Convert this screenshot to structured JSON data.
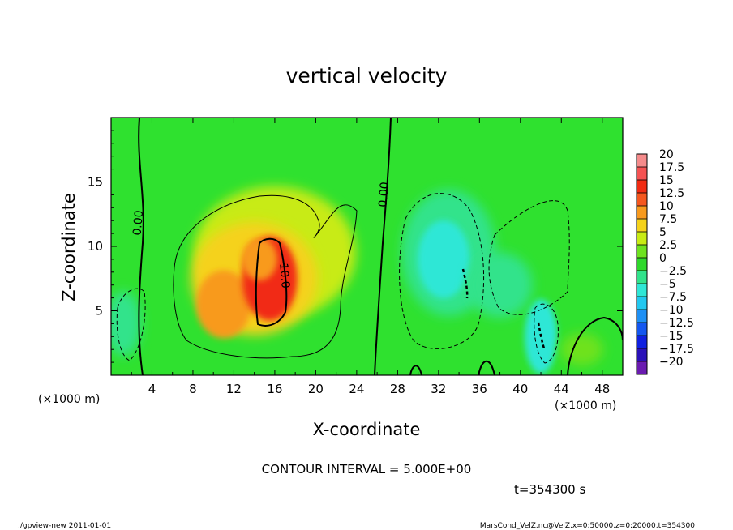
{
  "chart_data": {
    "type": "heatmap",
    "title": "vertical velocity",
    "xlabel": "X-coordinate",
    "ylabel": "Z-coordinate",
    "x_unit_left": "(×1000 m)",
    "x_unit_right": "(×1000 m)",
    "xlim": [
      0,
      50
    ],
    "ylim": [
      0,
      20
    ],
    "xticks": [
      4,
      8,
      12,
      16,
      20,
      24,
      28,
      32,
      36,
      40,
      44,
      48
    ],
    "yticks": [
      5,
      10,
      15
    ],
    "contour_interval_text": "CONTOUR INTERVAL = 5.000E+00",
    "time_text": "t=354300 s",
    "footer_left": "./gpview-new 2011-01-01",
    "footer_right": "MarsCond_VelZ.nc@VelZ,x=0:50000,z=0:20000,t=354300",
    "contour_labels": [
      {
        "text": "0.00",
        "x": 3.0,
        "z": 11.8,
        "angle": -85
      },
      {
        "text": "0.00",
        "x": 27.0,
        "z": 14.0,
        "angle": -85
      },
      {
        "text": "10.0",
        "x": 16.6,
        "z": 7.7,
        "angle": 85
      }
    ],
    "colorbar": {
      "levels": [
        20,
        17.5,
        15,
        12.5,
        10,
        7.5,
        5,
        2.5,
        0,
        -2.5,
        -5,
        -7.5,
        -10,
        -12.5,
        -15,
        -17.5,
        -20
      ],
      "labels": [
        "20",
        "17.5",
        "15",
        "12.5",
        "10",
        "7.5",
        "5",
        "2.5",
        "0",
        "−2.5",
        "−5",
        "−7.5",
        "−10",
        "−12.5",
        "−15",
        "−17.5",
        "−20"
      ],
      "colors": [
        "#f58b8b",
        "#f55353",
        "#f12b12",
        "#f5571e",
        "#f89a1d",
        "#f5d21a",
        "#c8eb14",
        "#6ee21f",
        "#2ed82b",
        "#31e38b",
        "#2fe7d6",
        "#22c8f0",
        "#1e90f5",
        "#1457f0",
        "#1020e0",
        "#2a11b8",
        "#6a1bb0"
      ]
    },
    "field_features": [
      {
        "sign": "positive",
        "x": 15.5,
        "z": 7.5,
        "peak": 12.5
      },
      {
        "sign": "positive",
        "x": 12.0,
        "z": 6.0,
        "peak": 8
      },
      {
        "sign": "positive",
        "x": 14.0,
        "z": 11.0,
        "peak": 4
      },
      {
        "sign": "negative",
        "x": 33.0,
        "z": 9.5,
        "peak": -6
      },
      {
        "sign": "negative",
        "x": 42.0,
        "z": 3.0,
        "peak": -7
      },
      {
        "sign": "negative",
        "x": 1.0,
        "z": 4.0,
        "peak": -5
      }
    ]
  }
}
